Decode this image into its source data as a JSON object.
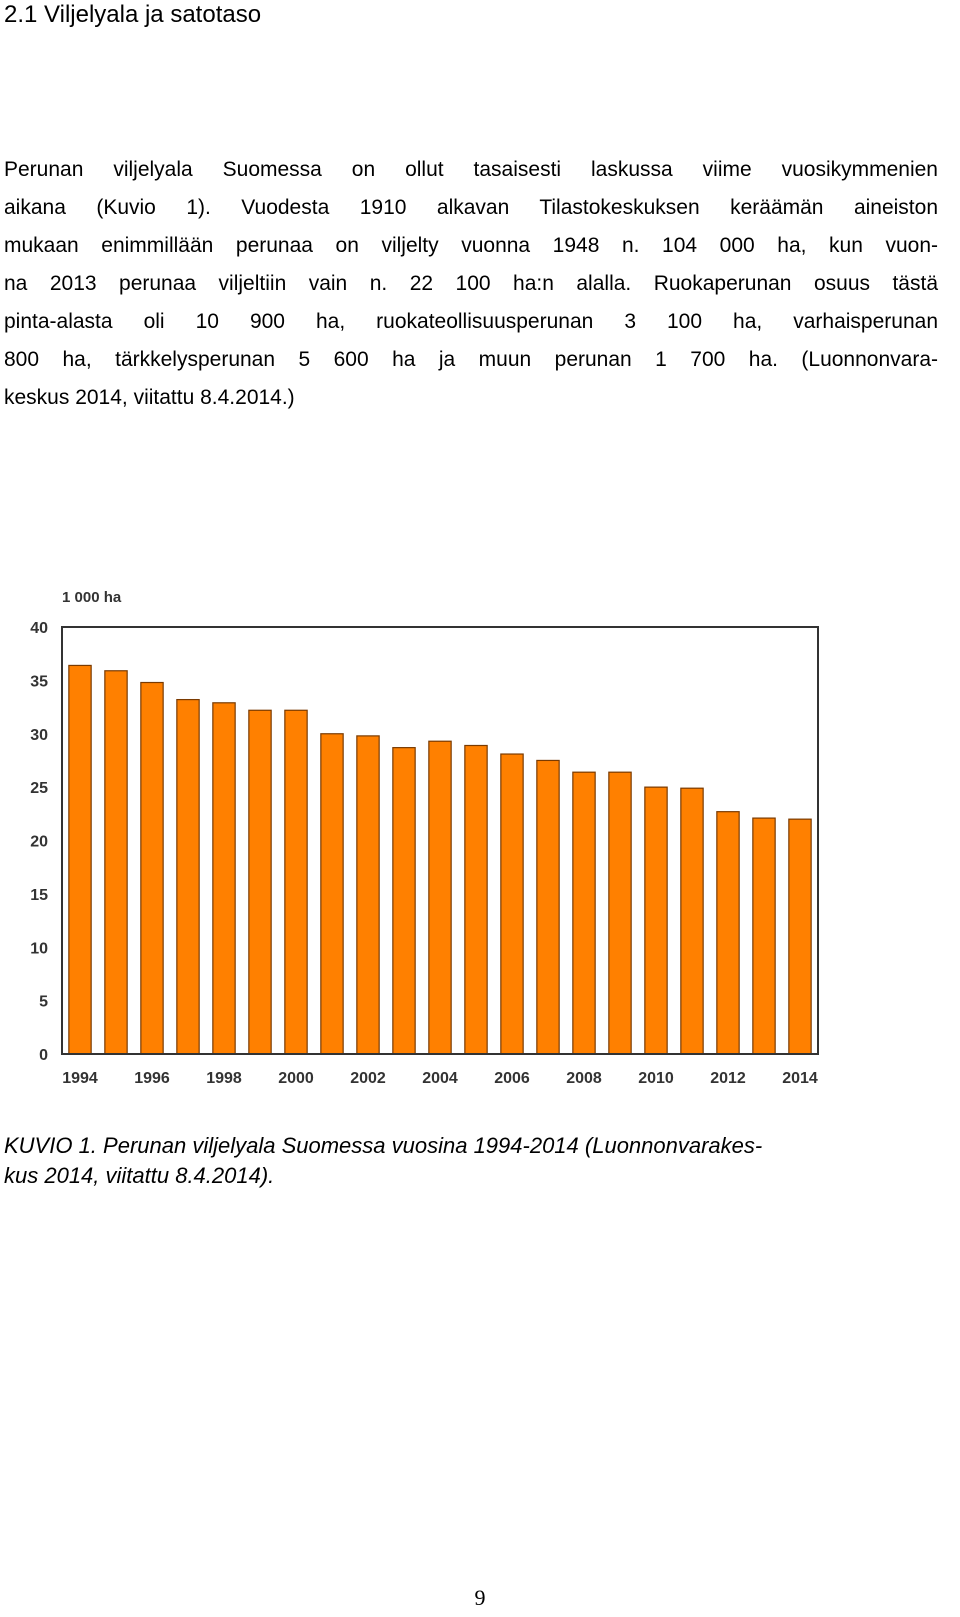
{
  "section_heading": "2.1 Viljelyala ja satotaso",
  "paragraph_lines": [
    "Perunan viljelyala Suomessa on ollut tasaisesti laskussa viime vuosikymmenien",
    "aikana (Kuvio 1). Vuodesta 1910 alkavan Tilastokeskuksen keräämän aineiston",
    "mukaan enimmillään perunaa on viljelty vuonna 1948 n. 104 000 ha, kun vuon-",
    "na 2013 perunaa viljeltiin vain n. 22 100 ha:n alalla. Ruokaperunan osuus tästä",
    "pinta-alasta oli 10 900 ha, ruokateollisuusperunan 3 100 ha, varhaisperunan",
    "800 ha, tärkkelysperunan 5 600 ha ja muun perunan 1 700 ha. (Luonnonvara-",
    "keskus 2014, viitattu 8.4.2014.)"
  ],
  "chart_data": {
    "type": "bar",
    "unit_label": "1 000 ha",
    "x": [
      1994,
      1995,
      1996,
      1997,
      1998,
      1999,
      2000,
      2001,
      2002,
      2003,
      2004,
      2005,
      2006,
      2007,
      2008,
      2009,
      2010,
      2011,
      2012,
      2013,
      2014
    ],
    "values": [
      36.4,
      35.9,
      34.8,
      33.2,
      32.9,
      32.2,
      32.2,
      30.0,
      29.8,
      28.7,
      29.3,
      28.9,
      28.1,
      27.5,
      26.4,
      26.4,
      25.0,
      24.9,
      22.7,
      22.1,
      22.0
    ],
    "x_tick_labels": [
      "1994",
      "1996",
      "1998",
      "2000",
      "2002",
      "2004",
      "2006",
      "2008",
      "2010",
      "2012",
      "2014"
    ],
    "y_ticks": [
      0,
      5,
      10,
      15,
      20,
      25,
      30,
      35,
      40
    ],
    "ylim": [
      0,
      40
    ],
    "bar_color": "#ff8000",
    "grid": false
  },
  "caption_lines": [
    "KUVIO 1. Perunan viljelyala Suomessa vuosina 1994-2014 (Luonnonvarakes-",
    "kus 2014, viitattu 8.4.2014)."
  ],
  "page_number": "9"
}
